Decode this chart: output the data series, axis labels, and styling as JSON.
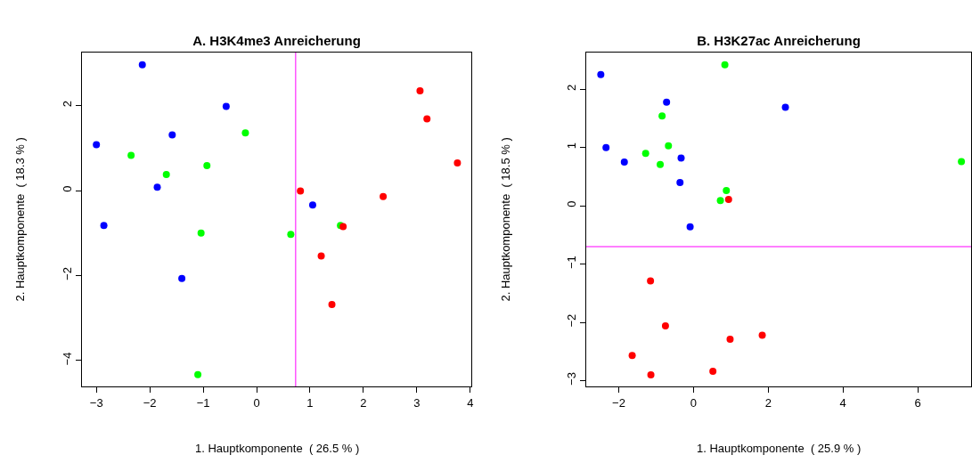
{
  "chart_data": [
    {
      "type": "scatter",
      "title": "A. H3K4me3 Anreicherung",
      "xlabel": "1. Hauptkomponente  ( 26.5 % )",
      "ylabel": "2. Hauptkomponente  ( 18.3 % )",
      "marker": "circle",
      "xlim": [
        -3.27,
        4.02
      ],
      "ylim": [
        -4.61,
        3.25
      ],
      "xticks": [
        -3,
        -2,
        -1,
        0,
        1,
        2,
        3,
        4
      ],
      "yticks": [
        -4,
        -2,
        0,
        2
      ],
      "series": [
        {
          "color": "#0000ff",
          "x": [
            -2.14,
            -0.57,
            -1.58,
            -3.0,
            -1.86,
            -2.86,
            -1.4,
            1.05
          ],
          "values": [
            2.96,
            1.98,
            1.31,
            1.08,
            0.08,
            -0.82,
            -2.07,
            -0.34
          ]
        },
        {
          "color": "#00ff00",
          "x": [
            -0.21,
            -2.35,
            -1.69,
            -0.93,
            -1.04,
            0.64,
            1.57,
            -1.1
          ],
          "values": [
            1.36,
            0.83,
            0.38,
            0.59,
            -1.0,
            -1.03,
            -0.82,
            -4.33
          ]
        },
        {
          "color": "#ff0000",
          "x": [
            3.06,
            3.19,
            3.76,
            0.82,
            2.37,
            1.62,
            1.21,
            1.41
          ],
          "values": [
            2.35,
            1.69,
            0.65,
            -0.01,
            -0.14,
            -0.85,
            -1.54,
            -2.68
          ]
        }
      ],
      "ref_lines": [
        {
          "axis": "x",
          "value": 0.73,
          "color": "#ff55ff"
        }
      ]
    },
    {
      "type": "scatter",
      "title": "B. H3K27ac Anreicherung",
      "xlabel": "1. Hauptkomponente  ( 25.9 % )",
      "ylabel": "2. Hauptkomponente  ( 18.5 % )",
      "marker": "circle",
      "xlim": [
        -2.87,
        7.43
      ],
      "ylim": [
        -3.1,
        2.63
      ],
      "xticks": [
        -2,
        0,
        2,
        4,
        6
      ],
      "yticks": [
        -3,
        -2,
        -1,
        0,
        1,
        2
      ],
      "series": [
        {
          "color": "#0000ff",
          "x": [
            -2.48,
            -2.34,
            -1.85,
            -0.72,
            -0.33,
            -0.36,
            -0.09,
            2.46
          ],
          "values": [
            2.25,
            1.0,
            0.75,
            1.78,
            0.82,
            0.4,
            -0.36,
            1.69
          ]
        },
        {
          "color": "#00ff00",
          "x": [
            0.84,
            -0.84,
            -1.28,
            -0.67,
            -0.89,
            0.88,
            0.72,
            7.17
          ],
          "values": [
            2.42,
            1.54,
            0.9,
            1.03,
            0.71,
            0.26,
            0.09,
            0.76
          ]
        },
        {
          "color": "#ff0000",
          "x": [
            0.94,
            -1.15,
            -0.75,
            -1.64,
            -1.14,
            0.52,
            0.98,
            1.84
          ],
          "values": [
            0.11,
            -1.29,
            -2.06,
            -2.57,
            -2.9,
            -2.84,
            -2.29,
            -2.22
          ]
        }
      ],
      "ref_lines": [
        {
          "axis": "y",
          "value": -0.7,
          "color": "#ff55ff"
        }
      ]
    }
  ]
}
